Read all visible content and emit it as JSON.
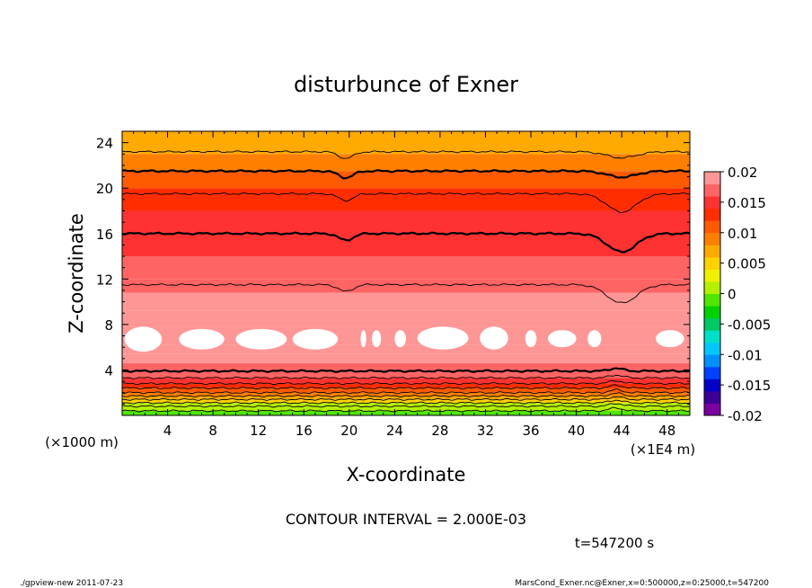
{
  "chart_data": {
    "type": "heatmap",
    "title": "disturbunce of Exner",
    "xlabel": "X-coordinate",
    "ylabel": "Z-coordinate",
    "x_unit_left": "(×1000 m)",
    "x_unit_right": "(×1E4 m)",
    "xlim": [
      0,
      50
    ],
    "ylim": [
      0,
      25
    ],
    "x_ticks": [
      4,
      8,
      12,
      16,
      20,
      24,
      28,
      32,
      36,
      40,
      44,
      48
    ],
    "y_ticks": [
      4,
      8,
      12,
      16,
      20,
      24
    ],
    "colorbar": {
      "min": -0.02,
      "max": 0.02,
      "interval": 0.002,
      "tick_labels": [
        "0.02",
        "0.015",
        "0.01",
        "0.005",
        "0",
        "-0.005",
        "-0.01",
        "-0.015",
        "-0.02"
      ],
      "tick_values": [
        0.02,
        0.015,
        0.01,
        0.005,
        0,
        -0.005,
        -0.01,
        -0.015,
        -0.02
      ],
      "colors": [
        "#7a00a0",
        "#3c0096",
        "#0000c8",
        "#0040ff",
        "#0090ff",
        "#00c8ff",
        "#00e0c8",
        "#00c864",
        "#00d200",
        "#50e600",
        "#b4f000",
        "#f0f000",
        "#ffd200",
        "#ffaa00",
        "#ff8000",
        "#ff5a00",
        "#ff2d00",
        "#ff3232",
        "#ff6464",
        "#ff9696"
      ]
    },
    "bands": [
      {
        "z": [
          0.0,
          0.4
        ],
        "value": -0.002
      },
      {
        "z": [
          0.4,
          0.8
        ],
        "value": 0.0
      },
      {
        "z": [
          0.8,
          1.1
        ],
        "value": 0.002
      },
      {
        "z": [
          1.1,
          1.4
        ],
        "value": 0.004
      },
      {
        "z": [
          1.4,
          1.7
        ],
        "value": 0.006
      },
      {
        "z": [
          1.7,
          2.0
        ],
        "value": 0.008
      },
      {
        "z": [
          2.0,
          2.4
        ],
        "value": 0.01
      },
      {
        "z": [
          2.4,
          2.8
        ],
        "value": 0.012
      },
      {
        "z": [
          2.8,
          3.3
        ],
        "value": 0.014
      },
      {
        "z": [
          3.3,
          4.0
        ],
        "value": 0.016
      },
      {
        "z": [
          4.0,
          4.6
        ],
        "value": 0.017
      },
      {
        "z": [
          4.6,
          5.4
        ],
        "value": 0.018
      },
      {
        "z": [
          5.4,
          6.2
        ],
        "value": 0.019
      },
      {
        "z": [
          6.2,
          7.8
        ],
        "value": 0.02
      },
      {
        "z": [
          7.8,
          9.2
        ],
        "value": 0.019
      },
      {
        "z": [
          9.2,
          10.8
        ],
        "value": 0.018
      },
      {
        "z": [
          10.8,
          12.0
        ],
        "value": 0.017
      },
      {
        "z": [
          12.0,
          14.0
        ],
        "value": 0.016
      },
      {
        "z": [
          14.0,
          18.0
        ],
        "value": 0.014
      },
      {
        "z": [
          18.0,
          20.0
        ],
        "value": 0.012
      },
      {
        "z": [
          20.0,
          21.5
        ],
        "value": 0.01
      },
      {
        "z": [
          21.5,
          23.0
        ],
        "value": 0.008
      },
      {
        "z": [
          23.0,
          25.0
        ],
        "value": 0.006
      }
    ],
    "white_regions": [
      {
        "x": [
          0.2,
          3.5
        ],
        "z": [
          5.6,
          7.8
        ]
      },
      {
        "x": [
          5.0,
          9.0
        ],
        "z": [
          5.8,
          7.6
        ]
      },
      {
        "x": [
          10.0,
          14.5
        ],
        "z": [
          5.8,
          7.6
        ]
      },
      {
        "x": [
          15.0,
          19.0
        ],
        "z": [
          5.8,
          7.6
        ]
      },
      {
        "x": [
          21.0,
          21.5
        ],
        "z": [
          6.0,
          7.5
        ]
      },
      {
        "x": [
          22.0,
          22.8
        ],
        "z": [
          6.0,
          7.5
        ]
      },
      {
        "x": [
          24.0,
          25.0
        ],
        "z": [
          6.0,
          7.5
        ]
      },
      {
        "x": [
          26.0,
          30.5
        ],
        "z": [
          5.8,
          7.8
        ]
      },
      {
        "x": [
          31.5,
          34.0
        ],
        "z": [
          5.8,
          7.8
        ]
      },
      {
        "x": [
          35.5,
          36.5
        ],
        "z": [
          6.0,
          7.5
        ]
      },
      {
        "x": [
          37.5,
          40.0
        ],
        "z": [
          6.0,
          7.5
        ]
      },
      {
        "x": [
          41.0,
          42.2
        ],
        "z": [
          6.0,
          7.5
        ]
      },
      {
        "x": [
          47.0,
          49.5
        ],
        "z": [
          6.0,
          7.5
        ]
      }
    ],
    "contour_lines": [
      {
        "z": 0.4,
        "thick": false
      },
      {
        "z": 0.8,
        "thick": false
      },
      {
        "z": 1.1,
        "thick": false
      },
      {
        "z": 1.4,
        "thick": false
      },
      {
        "z": 1.7,
        "thick": false
      },
      {
        "z": 2.0,
        "thick": false
      },
      {
        "z": 2.4,
        "thick": false
      },
      {
        "z": 2.8,
        "thick": false
      },
      {
        "z": 3.3,
        "thick": false
      },
      {
        "z": 3.9,
        "thick": true
      },
      {
        "z": 11.5,
        "thick": false
      },
      {
        "z": 16.0,
        "thick": true
      },
      {
        "z": 19.5,
        "thick": false
      },
      {
        "z": 21.5,
        "thick": true
      },
      {
        "z": 23.2,
        "thick": false
      }
    ]
  },
  "contour_interval_text": "CONTOUR INTERVAL = 2.000E-03",
  "time_text": "t=547200 s",
  "footer_left": "./gpview-new   2011-07-23",
  "footer_right": "MarsCond_Exner.nc@Exner,x=0:500000,z=0:25000,t=547200"
}
